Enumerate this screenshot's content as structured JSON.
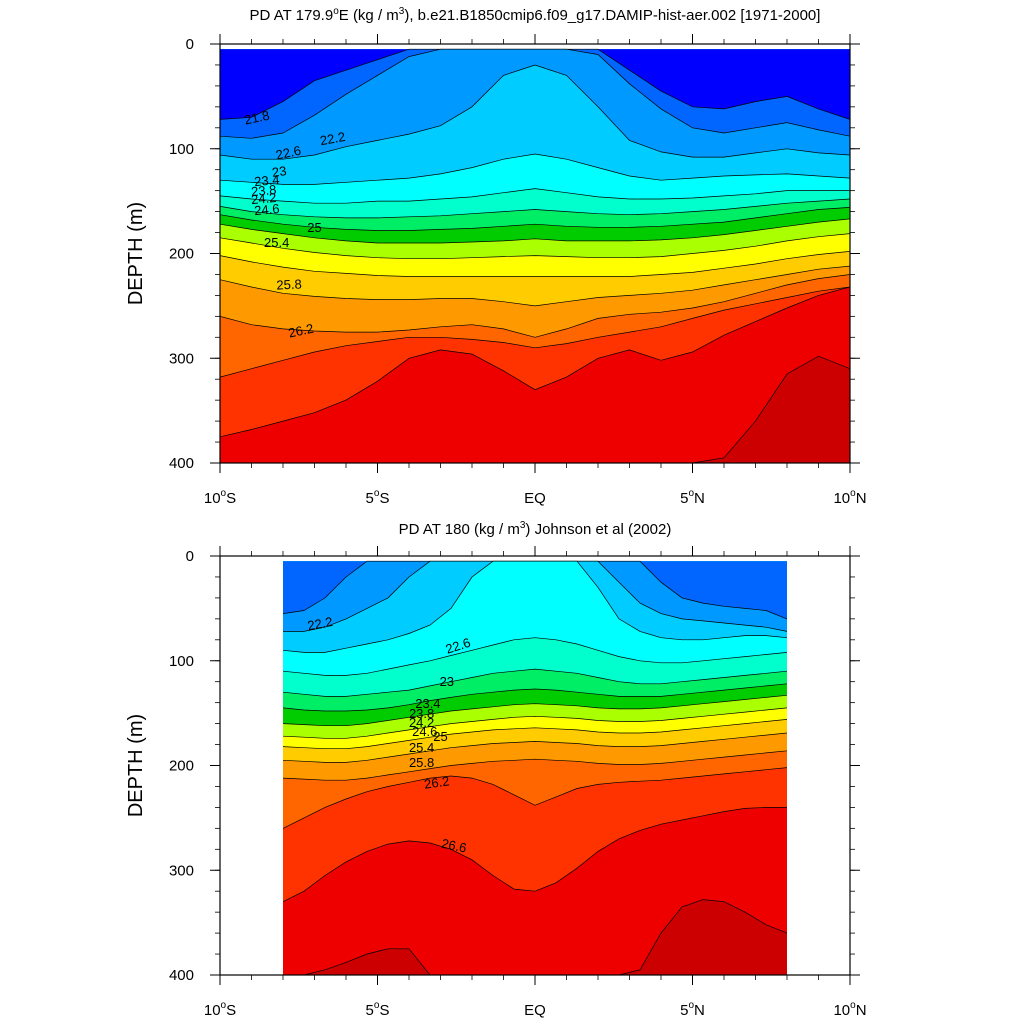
{
  "chart_data": [
    {
      "type": "contour",
      "title_prefix": "PD AT 179.9",
      "title_deg": "o",
      "title_mid": "E (kg / m",
      "title_sup": "3",
      "title_suffix": "), b.e21.B1850cmip6.f09_g17.DAMIP-hist-aer.002 [1971-2000]",
      "ylabel": "DEPTH (m)",
      "xlim": [
        -10,
        10
      ],
      "ylim": [
        400,
        0
      ],
      "y_ticks": [
        "0",
        "100",
        "200",
        "300",
        "400"
      ],
      "x_ticks": [
        {
          "value": -10,
          "num": "10",
          "deg": "o",
          "hem": "S"
        },
        {
          "value": -5,
          "num": "5",
          "deg": "o",
          "hem": "S"
        },
        {
          "value": 0,
          "num": "EQ",
          "deg": "",
          "hem": ""
        },
        {
          "value": 5,
          "num": "5",
          "deg": "o",
          "hem": "N"
        },
        {
          "value": 10,
          "num": "10",
          "deg": "o",
          "hem": "N"
        }
      ],
      "data_lat_range": [
        -10,
        10
      ],
      "data_depth_range": [
        5,
        400
      ],
      "levels": [
        {
          "value": 21.8,
          "depth": [
            72,
            70,
            55,
            35,
            25,
            15,
            5,
            5,
            5,
            5,
            5,
            5,
            5,
            25,
            45,
            60,
            62,
            55,
            50,
            62,
            72
          ]
        },
        {
          "value": 22.2,
          "depth": [
            88,
            90,
            85,
            68,
            48,
            30,
            12,
            5,
            5,
            5,
            5,
            5,
            10,
            38,
            62,
            80,
            85,
            80,
            75,
            82,
            88
          ]
        },
        {
          "value": 22.6,
          "depth": [
            106,
            110,
            110,
            106,
            98,
            92,
            86,
            78,
            60,
            30,
            20,
            30,
            60,
            92,
            103,
            108,
            108,
            104,
            100,
            104,
            106
          ]
        },
        {
          "value": 23.0,
          "depth": [
            130,
            132,
            134,
            134,
            132,
            130,
            128,
            124,
            118,
            110,
            105,
            110,
            118,
            126,
            130,
            128,
            126,
            125,
            124,
            126,
            128
          ]
        },
        {
          "value": 23.4,
          "depth": [
            145,
            148,
            150,
            152,
            152,
            150,
            150,
            148,
            146,
            142,
            138,
            142,
            146,
            148,
            148,
            147,
            145,
            143,
            140,
            140,
            140
          ]
        },
        {
          "value": 23.8,
          "depth": [
            155,
            160,
            163,
            165,
            166,
            166,
            165,
            164,
            162,
            160,
            158,
            160,
            162,
            163,
            162,
            160,
            158,
            155,
            152,
            150,
            148
          ]
        },
        {
          "value": 24.2,
          "depth": [
            163,
            168,
            172,
            175,
            177,
            178,
            178,
            177,
            176,
            174,
            172,
            174,
            175,
            175,
            174,
            172,
            170,
            166,
            162,
            158,
            156
          ]
        },
        {
          "value": 24.6,
          "depth": [
            172,
            177,
            181,
            185,
            188,
            190,
            190,
            190,
            189,
            188,
            186,
            188,
            188,
            188,
            187,
            185,
            182,
            178,
            174,
            170,
            167
          ]
        },
        {
          "value": 25.0,
          "depth": [
            185,
            190,
            195,
            199,
            202,
            204,
            205,
            205,
            204,
            203,
            202,
            203,
            204,
            204,
            203,
            200,
            197,
            193,
            188,
            184,
            181
          ]
        },
        {
          "value": 25.4,
          "depth": [
            202,
            208,
            213,
            217,
            219,
            221,
            222,
            222,
            222,
            222,
            222,
            222,
            222,
            222,
            220,
            218,
            214,
            210,
            205,
            201,
            198
          ]
        },
        {
          "value": 25.8,
          "depth": [
            225,
            232,
            238,
            241,
            243,
            244,
            244,
            243,
            243,
            246,
            250,
            246,
            242,
            240,
            238,
            235,
            230,
            225,
            220,
            215,
            212
          ]
        },
        {
          "value": 26.2,
          "depth": [
            260,
            268,
            272,
            274,
            275,
            275,
            273,
            270,
            268,
            272,
            280,
            272,
            262,
            258,
            256,
            252,
            246,
            238,
            230,
            224,
            220
          ]
        },
        {
          "value": 26.6,
          "depth": [
            318,
            310,
            302,
            294,
            288,
            284,
            280,
            280,
            282,
            285,
            290,
            286,
            280,
            275,
            270,
            262,
            254,
            248,
            242,
            236,
            232
          ]
        },
        {
          "value": 27.0,
          "depth": [
            375,
            368,
            360,
            352,
            340,
            322,
            300,
            292,
            296,
            312,
            330,
            318,
            300,
            292,
            302,
            294,
            278,
            265,
            252,
            240,
            232
          ]
        },
        {
          "value": 27.4,
          "depth": [
            410,
            410,
            410,
            410,
            410,
            410,
            410,
            410,
            410,
            410,
            410,
            410,
            410,
            410,
            410,
            410,
            395,
            360,
            315,
            298,
            310
          ]
        }
      ],
      "contour_labels": [
        "21.8",
        "22.2",
        "22.6",
        "23",
        "23.4",
        "23.8",
        "24.2",
        "24.6",
        "25",
        "25.4",
        "25.8",
        "26.2"
      ]
    },
    {
      "type": "contour",
      "title_prefix": "PD AT 180",
      "title_deg": "",
      "title_mid": " (kg / m",
      "title_sup": "3",
      "title_suffix": ") Johnson et al (2002)",
      "ylabel": "DEPTH (m)",
      "xlim": [
        -10,
        10
      ],
      "ylim": [
        400,
        0
      ],
      "y_ticks": [
        "0",
        "100",
        "200",
        "300",
        "400"
      ],
      "x_ticks": [
        {
          "value": -10,
          "num": "10",
          "deg": "o",
          "hem": "S"
        },
        {
          "value": -5,
          "num": "5",
          "deg": "o",
          "hem": "S"
        },
        {
          "value": 0,
          "num": "EQ",
          "deg": "",
          "hem": ""
        },
        {
          "value": 5,
          "num": "5",
          "deg": "o",
          "hem": "N"
        },
        {
          "value": 10,
          "num": "10",
          "deg": "o",
          "hem": "N"
        }
      ],
      "data_lat_range": [
        -8,
        8
      ],
      "data_depth_range": [
        5,
        400
      ],
      "levels": [
        {
          "value": 21.8,
          "depth": [
            55,
            52,
            40,
            20,
            5,
            5,
            5,
            5,
            5,
            5,
            5,
            5,
            5,
            5,
            5,
            5,
            5,
            5,
            25,
            40,
            45,
            48,
            50,
            52,
            60
          ]
        },
        {
          "value": 22.2,
          "depth": [
            72,
            72,
            68,
            60,
            50,
            40,
            20,
            5,
            5,
            5,
            5,
            5,
            5,
            5,
            5,
            5,
            25,
            45,
            55,
            60,
            62,
            64,
            66,
            68,
            72
          ]
        },
        {
          "value": 22.6,
          "depth": [
            90,
            92,
            92,
            88,
            84,
            80,
            74,
            66,
            50,
            20,
            5,
            5,
            5,
            5,
            5,
            30,
            60,
            72,
            78,
            80,
            80,
            78,
            76,
            76,
            78
          ]
        },
        {
          "value": 23.0,
          "depth": [
            110,
            112,
            114,
            114,
            112,
            108,
            104,
            100,
            95,
            90,
            85,
            80,
            78,
            80,
            84,
            90,
            96,
            100,
            102,
            102,
            100,
            98,
            96,
            94,
            92
          ]
        },
        {
          "value": 23.4,
          "depth": [
            130,
            132,
            134,
            134,
            132,
            130,
            128,
            124,
            120,
            116,
            112,
            110,
            108,
            110,
            112,
            116,
            120,
            122,
            122,
            120,
            118,
            116,
            114,
            112,
            110
          ]
        },
        {
          "value": 23.8,
          "depth": [
            145,
            147,
            148,
            148,
            147,
            145,
            142,
            138,
            135,
            132,
            130,
            128,
            127,
            128,
            130,
            132,
            134,
            134,
            134,
            132,
            130,
            128,
            126,
            124,
            122
          ]
        },
        {
          "value": 24.2,
          "depth": [
            160,
            161,
            162,
            162,
            160,
            157,
            154,
            151,
            148,
            146,
            144,
            142,
            141,
            142,
            143,
            145,
            146,
            146,
            145,
            143,
            141,
            139,
            137,
            135,
            133
          ]
        },
        {
          "value": 24.6,
          "depth": [
            172,
            173,
            174,
            174,
            172,
            169,
            166,
            163,
            160,
            158,
            156,
            154,
            153,
            154,
            155,
            157,
            158,
            158,
            157,
            155,
            153,
            151,
            149,
            147,
            145
          ]
        },
        {
          "value": 25.0,
          "depth": [
            182,
            183,
            184,
            184,
            182,
            179,
            176,
            173,
            170,
            168,
            166,
            165,
            164,
            165,
            166,
            168,
            169,
            169,
            168,
            166,
            164,
            162,
            160,
            158,
            156
          ]
        },
        {
          "value": 25.4,
          "depth": [
            195,
            196,
            197,
            197,
            195,
            192,
            189,
            186,
            183,
            181,
            179,
            178,
            177,
            178,
            179,
            181,
            182,
            182,
            181,
            179,
            177,
            175,
            173,
            171,
            169
          ]
        },
        {
          "value": 25.8,
          "depth": [
            212,
            213,
            214,
            214,
            212,
            209,
            206,
            203,
            200,
            198,
            196,
            195,
            194,
            195,
            196,
            198,
            199,
            199,
            198,
            196,
            194,
            192,
            190,
            188,
            186
          ]
        },
        {
          "value": 26.2,
          "depth": [
            260,
            250,
            240,
            232,
            225,
            220,
            216,
            212,
            210,
            212,
            218,
            228,
            238,
            230,
            222,
            218,
            216,
            215,
            214,
            212,
            210,
            208,
            206,
            204,
            202
          ]
        },
        {
          "value": 26.6,
          "depth": [
            330,
            320,
            305,
            292,
            282,
            275,
            272,
            274,
            280,
            290,
            305,
            318,
            320,
            312,
            298,
            282,
            270,
            262,
            256,
            252,
            248,
            244,
            241,
            240,
            240
          ]
        },
        {
          "value": 27.0,
          "depth": [
            410,
            400,
            395,
            388,
            380,
            375,
            375,
            410,
            410,
            410,
            410,
            410,
            410,
            410,
            410,
            410,
            410,
            395,
            360,
            335,
            328,
            330,
            340,
            352,
            360
          ]
        }
      ],
      "contour_labels": [
        "22.2",
        "22.6",
        "23",
        "23.4",
        "23.8",
        "24.2",
        "24.6",
        "25",
        "25.4",
        "25.8",
        "26.2",
        "26.6"
      ]
    }
  ],
  "colors": {
    "background": "#ffffff",
    "missing": "#ffffff",
    "band_fills": [
      "#707070",
      "#b4b4b4",
      "#ff00ff",
      "#cc00dd",
      "#6600ee",
      "#0000ff",
      "#0066ff",
      "#0099ff",
      "#00ccff",
      "#00ffff",
      "#00ffcc",
      "#00ee66",
      "#00cc00",
      "#aaff00",
      "#ffff00",
      "#ffcc00",
      "#ff9900",
      "#ff6600",
      "#ff3300",
      "#ee0000",
      "#cc0000"
    ]
  }
}
